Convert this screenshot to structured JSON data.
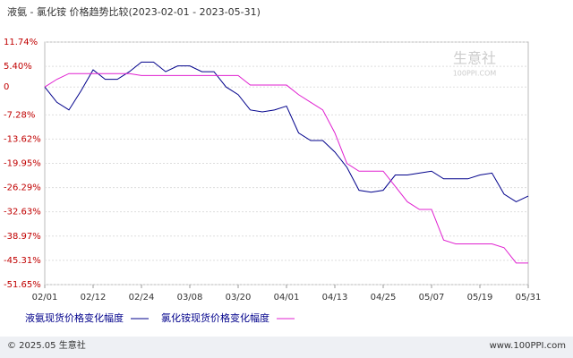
{
  "chart_data": {
    "type": "line",
    "title": "液氨 - 氯化铵 价格趋势比较(2023-02-01 - 2023-05-31)",
    "watermark": "生意社",
    "watermark_sub": "100PPI.COM",
    "footer_left": "© 2025.05 生意社",
    "footer_right": "www.100PPI.com",
    "x": [
      "02/01",
      "02/04",
      "02/07",
      "02/09",
      "02/12",
      "02/15",
      "02/18",
      "02/21",
      "02/24",
      "02/27",
      "03/02",
      "03/05",
      "03/08",
      "03/11",
      "03/14",
      "03/17",
      "03/20",
      "03/23",
      "03/26",
      "03/29",
      "04/01",
      "04/04",
      "04/07",
      "04/10",
      "04/13",
      "04/16",
      "04/19",
      "04/22",
      "04/25",
      "04/28",
      "05/01",
      "05/04",
      "05/07",
      "05/10",
      "05/13",
      "05/16",
      "05/19",
      "05/22",
      "05/25",
      "05/28",
      "05/31"
    ],
    "xticks": [
      "02/01",
      "02/12",
      "02/24",
      "03/08",
      "03/20",
      "04/01",
      "04/13",
      "04/25",
      "05/07",
      "05/19",
      "05/31"
    ],
    "ylim": [
      -51.65,
      11.74
    ],
    "yticks": [
      {
        "value": 11.74,
        "label": "11.74%"
      },
      {
        "value": 5.4,
        "label": "5.40%"
      },
      0,
      {
        "value": -7.28,
        "label": "-7.28%"
      },
      {
        "value": -13.62,
        "label": "-13.62%"
      },
      {
        "value": -19.95,
        "label": "-19.95%"
      },
      {
        "value": -26.29,
        "label": "-26.29%"
      },
      {
        "value": -32.63,
        "label": "-32.63%"
      },
      {
        "value": -38.97,
        "label": "-38.97%"
      },
      {
        "value": -45.31,
        "label": "-45.31%"
      },
      {
        "value": -51.65,
        "label": "-51.65%"
      }
    ],
    "grid": true,
    "series": [
      {
        "name": "液氨现货价格变化幅度",
        "color": "#00008b",
        "values": [
          0,
          -4,
          -6,
          -1,
          4.5,
          2,
          2,
          4,
          6.5,
          6.5,
          4,
          5.5,
          5.5,
          4,
          4,
          0,
          -2,
          -6,
          -6.5,
          -6,
          -5,
          -12,
          -14,
          -14,
          -17,
          -21,
          -27,
          -27.5,
          -27,
          -23,
          -23,
          -22.5,
          -22,
          -24,
          -24,
          -24,
          -23,
          -22.5,
          -28,
          -30,
          -28.5
        ]
      },
      {
        "name": "氯化铵现货价格变化幅度",
        "color": "#e020d0",
        "values": [
          0,
          2,
          3.5,
          3.5,
          3.5,
          3.5,
          3.5,
          3.5,
          3,
          3,
          3,
          3,
          3,
          3,
          3,
          3,
          3,
          0.5,
          0.5,
          0.5,
          0.5,
          -2,
          -4,
          -6,
          -12,
          -20,
          -22,
          -22,
          -22,
          -26,
          -30,
          -32,
          -32,
          -40,
          -41,
          -41,
          -41,
          -41,
          -42,
          -46,
          -46
        ]
      }
    ]
  }
}
